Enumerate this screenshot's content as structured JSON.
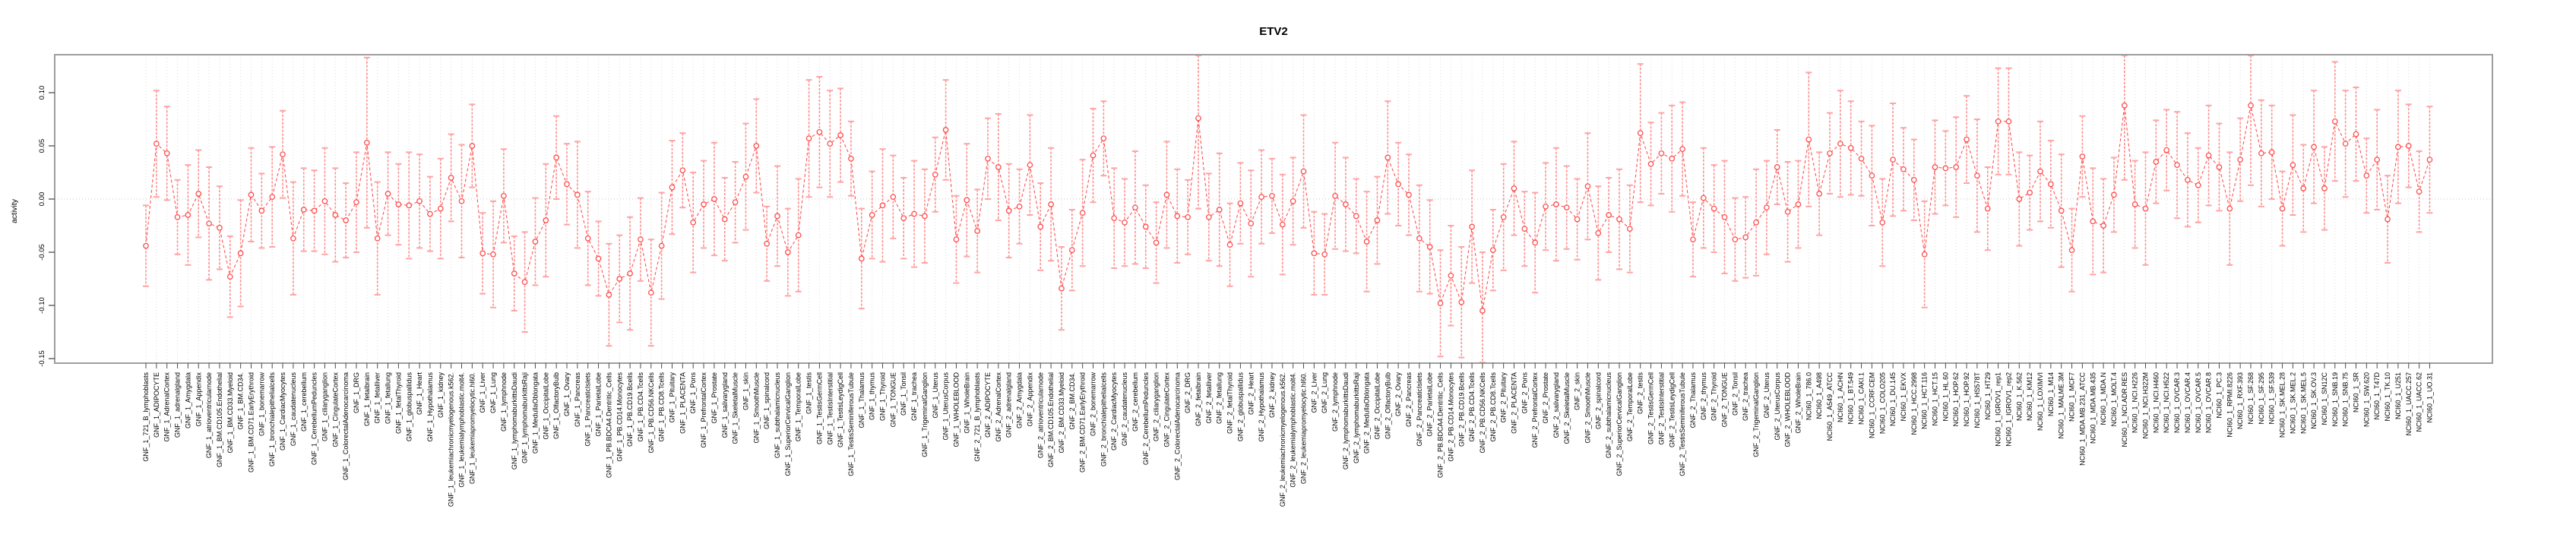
{
  "title": "ETV2",
  "y_axis": {
    "label": "activity",
    "tick_labels": [
      "0.10",
      "0.05",
      "0.00",
      "-0.05",
      "-0.10",
      "-0.15"
    ],
    "tick_values": [
      0.1,
      0.05,
      0.0,
      -0.05,
      -0.1,
      -0.15
    ]
  },
  "colors": {
    "point": "#ff4d4d",
    "line": "#ff5252",
    "error_bar": "#ff8f8f",
    "error_cap": "#ffa3a3",
    "grid": "#dcdcdc",
    "zero_line": "#c9c9c9",
    "box": "#9e9e9e",
    "tick": "#4d4d4d",
    "text": "#000000"
  },
  "chart_data": {
    "type": "line",
    "title": "ETV2",
    "xlabel": "",
    "ylabel": "activity",
    "ylim": [
      -0.155,
      0.136
    ],
    "grid": "vertical-dotted-per-category",
    "legend": "none",
    "point_style": "open-circle",
    "line_style": "dashed",
    "error_bars": true,
    "categories": [
      "GNF_1_721_B_lymphoblasts",
      "GNF_1_ADIPOCYTE",
      "GNF_1_AdrenalCortex",
      "GNF_1_adrenalgland",
      "GNF_1_Amygdala",
      "GNF_1_Appendix",
      "GNF_1_atrioventricularnode",
      "GNF_1_BM.CD105.Endothelial",
      "GNF_1_BM.CD33.Myeloid",
      "GNF_1_BM.CD34.",
      "GNF_1_BM.CD71.EarlyErythroid",
      "GNF_1_bonemarrow",
      "GNF_1_bronchialepithelialcells",
      "GNF_1_CardiacMyocytes",
      "GNF_1_caudatenucleus",
      "GNF_1_cerebellum",
      "GNF_1_CerebellumPeduncles",
      "GNF_1_ciliaryganglion",
      "GNF_1_CingulateCortex",
      "GNF_1_ColorectalAdenocarcinoma",
      "GNF_1_DRG",
      "GNF_1_fetalbrain",
      "GNF_1_fetalliver",
      "GNF_1_fetallung",
      "GNF_1_fetalThyroid",
      "GNF_1_globuspallidus",
      "GNF_1_Heart",
      "GNF_1_Hypothalamus",
      "GNF_1_kidney",
      "GNF_1_leukemiachronicmyelogenous.k562.",
      "GNF_1_leukemialymphoblastic.molt4.",
      "GNF_1_leukemiapromyelocytic.hl60.",
      "GNF_1_Liver",
      "GNF_1_Lung",
      "GNF_1_lymphnode",
      "GNF_1_lymphomaburkittsDaudi",
      "GNF_1_lymphomaburkittsRaji",
      "GNF_1_MedullaOblongata",
      "GNF_1_OccipitalLobe",
      "GNF_1_OlfactoryBulb",
      "GNF_1_Ovary",
      "GNF_1_Pancreas",
      "GNF_1_PancreaticIslets",
      "GNF_1_ParietalLobe",
      "GNF_1_PB.BDCA4.Dentritic_Cells",
      "GNF_1_PB.CD14.Monocytes",
      "GNF_1_PB.CD19.Bcells",
      "GNF_1_PB.CD4.Tcells",
      "GNF_1_PB.CD56.NKCells",
      "GNF_1_PB.CD8.Tcells",
      "GNF_1_Pituitary",
      "GNF_1_PLACENTA",
      "GNF_1_Pons",
      "GNF_1_PrefrontalCortex",
      "GNF_1_Prostate",
      "GNF_1_salivarygland",
      "GNF_1_SkeletalMuscle",
      "GNF_1_skin",
      "GNF_1_SmoothMuscle",
      "GNF_1_spinalcord",
      "GNF_1_subthalamicnucleus",
      "GNF_1_SuperiorCervicalGanglion",
      "GNF_1_TemporalLobe",
      "GNF_1_testis",
      "GNF_1_TestisGermCell",
      "GNF_1_TestisInterstitial",
      "GNF_1_TestisLeydigCell",
      "GNF_1_TestisSeminiferousTubule",
      "GNF_1_Thalamus",
      "GNF_1_thymus",
      "GNF_1_Thyroid",
      "GNF_1_TONGUE",
      "GNF_1_Tonsil",
      "GNF_1_trachea",
      "GNF_1_TrigeminalGanglion",
      "GNF_1_Uterus",
      "GNF_1_UterusCorpus",
      "GNF_1_WHOLEBLOOD",
      "GNF_1_WholeBrain",
      "GNF_2_721_B_lymphoblasts",
      "GNF_2_ADIPOCYTE",
      "GNF_2_AdrenalCortex",
      "GNF_2_adrenalgland",
      "GNF_2_Amygdala",
      "GNF_2_Appendix",
      "GNF_2_atrioventricularnode",
      "GNF_2_BM.CD105.Endothelial",
      "GNF_2_BM.CD33.Myeloid",
      "GNF_2_BM.CD34.",
      "GNF_2_BM.CD71.EarlyErythroid",
      "GNF_2_bonemarrow",
      "GNF_2_bronchialepithelialcells",
      "GNF_2_CardiacMyocytes",
      "GNF_2_caudatenucleus",
      "GNF_2_cerebellum",
      "GNF_2_CerebellumPeduncles",
      "GNF_2_ciliaryganglion",
      "GNF_2_CingulateCortex",
      "GNF_2_ColorectalAdenocarcinoma",
      "GNF_2_DRG",
      "GNF_2_fetalbrain",
      "GNF_2_fetalliver",
      "GNF_2_fetallung",
      "GNF_2_fetalThyroid",
      "GNF_2_globuspallidus",
      "GNF_2_Heart",
      "GNF_2_Hypothalamus",
      "GNF_2_kidney",
      "GNF_2_leukemiachronicmyelogenous.k562.",
      "GNF_2_leukemialymphoblastic.molt4.",
      "GNF_2_leukemiapromyelocytic.hl60.",
      "GNF_2_Liver",
      "GNF_2_Lung",
      "GNF_2_lymphnode",
      "GNF_2_lymphomaburkittsDaudi",
      "GNF_2_lymphomaburkittsRaji",
      "GNF_2_MedullaOblongata",
      "GNF_2_OccipitalLobe",
      "GNF_2_OlfactoryBulb",
      "GNF_2_Ovary",
      "GNF_2_Pancreas",
      "GNF_2_PancreaticIslets",
      "GNF_2_ParietalLobe",
      "GNF_2_PB.BDCA4.Dentritic_Cells",
      "GNF_2_PB.CD14.Monocytes",
      "GNF_2_PB.CD19.Bcells",
      "GNF_2_PB.CD4.Tcells",
      "GNF_2_PB.CD56.NKCells",
      "GNF_2_PB.CD8.Tcells",
      "GNF_2_Pituitary",
      "GNF_2_PLACENTA",
      "GNF_2_Pons",
      "GNF_2_PrefrontalCortex",
      "GNF_2_Prostate",
      "GNF_2_salivarygland",
      "GNF_2_SkeletalMuscle",
      "GNF_2_skin",
      "GNF_2_SmoothMuscle",
      "GNF_2_spinalcord",
      "GNF_2_subthalamicnucleus",
      "GNF_2_SuperiorCervicalGanglion",
      "GNF_2_TemporalLobe",
      "GNF_2_testis",
      "GNF_2_TestisGermCell",
      "GNF_2_TestisInterstitial",
      "GNF_2_TestisLeydigCell",
      "GNF_2_TestisSeminiferousTubule",
      "GNF_2_Thalamus",
      "GNF_2_thymus",
      "GNF_2_Thyroid",
      "GNF_2_TONGUE",
      "GNF_2_Tonsil",
      "GNF_2_trachea",
      "GNF_2_TrigeminalGanglion",
      "GNF_2_Uterus",
      "GNF_2_UterusCorpus",
      "GNF_2_WHOLEBLOOD",
      "GNF_2_WholeBrain",
      "NCI60_1_786.0",
      "NCI60_1_A498",
      "NCI60_1_A549_ATCC",
      "NCI60_1_ACHN",
      "NCI60_1_BT.549",
      "NCI60_1_CAKI.1",
      "NCI60_1_CCRF.CEM",
      "NCI60_1_COLO205",
      "NCI60_1_DU.145",
      "NCI60_1_EKVX",
      "NCI60_1_HCC.2998",
      "NCI60_1_HCT.116",
      "NCI60_1_HCT.15",
      "NCI60_1_HL.60",
      "NCI60_1_HOP.62",
      "NCI60_1_HOP.92",
      "NCI60_1_HS578T",
      "NCI60_1_HT29",
      "NCI60_1_IGROV1_rep1",
      "NCI60_1_IGROV1_rep2",
      "NCI60_1_K.562",
      "NCI60_1_KM12",
      "NCI60_1_LOXIMVI",
      "NCI60_1_M14",
      "NCI60_1_MALME.3M",
      "NCI60_1_MCF7",
      "NCI60_1_MDA.MB.231_ATCC",
      "NCI60_1_MDA.MB.435",
      "NCI60_1_MDA.N",
      "NCI60_1_MOLT.4",
      "NCI60_1_NCI.ADR.RES",
      "NCI60_1_NCI.H226",
      "NCI60_1_NCI.H322M",
      "NCI60_1_NCI.H460",
      "NCI60_1_NCI.H522",
      "NCI60_1_OVCAR.3",
      "NCI60_1_OVCAR.4",
      "NCI60_1_OVCAR.5",
      "NCI60_1_OVCAR.8",
      "NCI60_1_PC.3",
      "NCI60_1_RPMI.8226",
      "NCI60_1_RXF.393",
      "NCI60_1_SF.268",
      "NCI60_1_SF.295",
      "NCI60_1_SF.539",
      "NCI60_1_SK.MEL.28",
      "NCI60_1_SK.MEL.2",
      "NCI60_1_SK.MEL.5",
      "NCI60_1_SK.OV.3",
      "NCI60_1_SN12C",
      "NCI60_1_SNB.19",
      "NCI60_1_SNB.75",
      "NCI60_1_SR",
      "NCI60_1_SW.620",
      "NCI60_1_T47D",
      "NCI60_1_TK.10",
      "NCI60_1_U251",
      "NCI60_1_UACC.257",
      "NCI60_1_UACC.62",
      "NCI60_1_UO.31"
    ],
    "series": [
      {
        "name": "activity",
        "values": [
          -0.044,
          0.052,
          0.043,
          -0.017,
          -0.015,
          0.005,
          -0.023,
          -0.027,
          -0.073,
          -0.051,
          0.004,
          -0.011,
          0.002,
          0.042,
          -0.037,
          -0.01,
          -0.011,
          -0.002,
          -0.015,
          -0.02,
          -0.003,
          0.053,
          -0.037,
          0.005,
          -0.005,
          -0.006,
          -0.002,
          -0.014,
          -0.009,
          0.02,
          -0.002,
          0.05,
          -0.051,
          -0.052,
          0.003,
          -0.07,
          -0.078,
          -0.04,
          -0.02,
          0.039,
          0.014,
          0.004,
          -0.037,
          -0.056,
          -0.09,
          -0.075,
          -0.07,
          -0.038,
          -0.088,
          -0.044,
          0.011,
          0.027,
          -0.022,
          -0.005,
          0.0,
          -0.019,
          -0.003,
          0.021,
          0.05,
          -0.042,
          -0.016,
          -0.05,
          -0.034,
          0.057,
          0.063,
          0.052,
          0.06,
          0.038,
          -0.056,
          -0.015,
          -0.006,
          0.002,
          -0.018,
          -0.014,
          -0.016,
          0.023,
          0.065,
          -0.038,
          -0.001,
          -0.03,
          0.038,
          0.03,
          -0.011,
          -0.007,
          0.032,
          -0.026,
          -0.005,
          -0.084,
          -0.048,
          -0.013,
          0.041,
          0.057,
          -0.018,
          -0.022,
          -0.008,
          -0.026,
          -0.041,
          0.004,
          -0.016,
          -0.017,
          0.076,
          -0.017,
          -0.01,
          -0.043,
          -0.004,
          -0.023,
          0.002,
          0.003,
          -0.024,
          -0.002,
          0.026,
          -0.051,
          -0.052,
          0.003,
          -0.005,
          -0.016,
          -0.04,
          -0.02,
          0.039,
          0.014,
          0.004,
          -0.037,
          -0.045,
          -0.098,
          -0.072,
          -0.097,
          -0.026,
          -0.105,
          -0.048,
          -0.017,
          0.01,
          -0.028,
          -0.041,
          -0.007,
          -0.005,
          -0.008,
          -0.019,
          0.012,
          -0.032,
          -0.015,
          -0.019,
          -0.028,
          0.062,
          0.033,
          0.043,
          0.038,
          0.047,
          -0.038,
          0.001,
          -0.009,
          -0.017,
          -0.038,
          -0.036,
          -0.022,
          -0.008,
          0.03,
          -0.012,
          -0.005,
          0.056,
          0.005,
          0.043,
          0.052,
          0.048,
          0.038,
          0.022,
          -0.022,
          0.037,
          0.028,
          0.018,
          -0.052,
          0.03,
          0.029,
          0.03,
          0.056,
          0.022,
          -0.009,
          0.073,
          0.073,
          0.0,
          0.006,
          0.026,
          0.014,
          -0.011,
          -0.048,
          0.04,
          -0.021,
          -0.025,
          0.004,
          0.088,
          -0.005,
          -0.009,
          0.035,
          0.046,
          0.032,
          0.018,
          0.013,
          0.041,
          0.03,
          -0.009,
          0.037,
          0.088,
          0.043,
          0.044,
          -0.009,
          0.032,
          0.01,
          0.049,
          0.01,
          0.073,
          0.052,
          0.061,
          0.022,
          0.037,
          -0.019,
          0.049,
          0.05,
          0.007,
          0.037
        ]
      }
    ],
    "error": [
      0.038,
      0.05,
      0.044,
      0.035,
      0.047,
      0.041,
      0.053,
      0.039,
      0.038,
      0.05,
      0.044,
      0.035,
      0.047,
      0.041,
      0.053,
      0.039,
      0.038,
      0.05,
      0.044,
      0.035,
      0.047,
      0.08,
      0.053,
      0.039,
      0.038,
      0.05,
      0.044,
      0.035,
      0.047,
      0.041,
      0.053,
      0.039,
      0.038,
      0.05,
      0.044,
      0.035,
      0.047,
      0.041,
      0.053,
      0.039,
      0.038,
      0.05,
      0.044,
      0.035,
      0.048,
      0.041,
      0.053,
      0.039,
      0.05,
      0.05,
      0.044,
      0.035,
      0.047,
      0.041,
      0.053,
      0.039,
      0.038,
      0.05,
      0.044,
      0.035,
      0.047,
      0.041,
      0.053,
      0.055,
      0.052,
      0.05,
      0.044,
      0.035,
      0.047,
      0.041,
      0.053,
      0.039,
      0.038,
      0.05,
      0.044,
      0.035,
      0.047,
      0.041,
      0.053,
      0.039,
      0.038,
      0.05,
      0.044,
      0.035,
      0.047,
      0.041,
      0.053,
      0.039,
      0.038,
      0.05,
      0.044,
      0.035,
      0.047,
      0.041,
      0.053,
      0.039,
      0.038,
      0.05,
      0.044,
      0.035,
      0.085,
      0.041,
      0.053,
      0.039,
      0.038,
      0.05,
      0.044,
      0.035,
      0.047,
      0.041,
      0.053,
      0.039,
      0.038,
      0.05,
      0.044,
      0.035,
      0.047,
      0.041,
      0.053,
      0.039,
      0.038,
      0.05,
      0.044,
      0.05,
      0.047,
      0.052,
      0.053,
      0.055,
      0.038,
      0.05,
      0.044,
      0.035,
      0.047,
      0.041,
      0.053,
      0.039,
      0.038,
      0.05,
      0.044,
      0.035,
      0.047,
      0.041,
      0.065,
      0.039,
      0.038,
      0.05,
      0.044,
      0.035,
      0.047,
      0.041,
      0.053,
      0.039,
      0.038,
      0.05,
      0.044,
      0.035,
      0.047,
      0.041,
      0.063,
      0.039,
      0.038,
      0.05,
      0.044,
      0.035,
      0.047,
      0.041,
      0.053,
      0.039,
      0.038,
      0.05,
      0.044,
      0.035,
      0.047,
      0.041,
      0.053,
      0.039,
      0.05,
      0.05,
      0.044,
      0.035,
      0.047,
      0.041,
      0.053,
      0.039,
      0.038,
      0.05,
      0.044,
      0.035,
      0.07,
      0.041,
      0.053,
      0.039,
      0.038,
      0.05,
      0.044,
      0.035,
      0.047,
      0.041,
      0.053,
      0.039,
      0.075,
      0.05,
      0.044,
      0.035,
      0.047,
      0.041,
      0.053,
      0.039,
      0.056,
      0.05,
      0.044,
      0.035,
      0.047,
      0.041,
      0.053,
      0.039,
      0.038,
      0.05
    ]
  }
}
